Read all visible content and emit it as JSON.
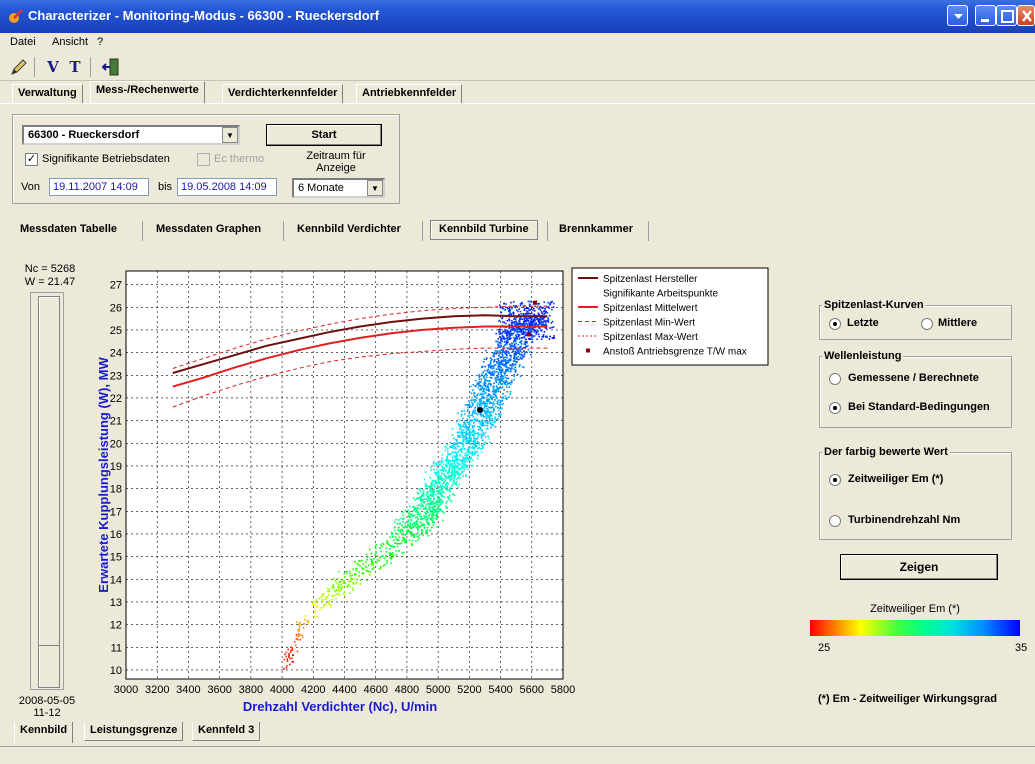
{
  "window": {
    "title": "Characterizer - Monitoring-Modus  -  66300  -  Rueckersdorf"
  },
  "menu": {
    "items": [
      "Datei",
      "Ansicht",
      "?"
    ]
  },
  "toolbar": {
    "buttons": [
      "pencil-icon",
      "V",
      "T",
      "exit-icon"
    ]
  },
  "main_tabs": [
    "Verwaltung",
    "Mess-/Rechenwerte",
    "Verdichterkennfelder",
    "Antriebkennfelder"
  ],
  "filter": {
    "station_value": "66300  -  Rueckersdorf",
    "start_label": "Start",
    "signifikante_label": "Signifikante Betriebsdaten",
    "signifikante_checked": true,
    "ec_thermo_label": "Ec thermo",
    "zeitraum_label": "Zeitraum für Anzeige",
    "von_label": "Von",
    "von_value": "19.11.2007 14:09",
    "bis_label": "bis",
    "bis_value": "19.05.2008 14:09",
    "period_value": "6 Monate"
  },
  "sub_tabs": [
    "Messdaten Tabelle",
    "Messdaten Graphen",
    "Kennbild Verdichter",
    "Kennbild Turbine",
    "Brennkammer"
  ],
  "slider": {
    "nc_label": "Nc = 5268",
    "w_label": "W = 21.47",
    "date_label": "2008-05-05",
    "time_label": "11-12"
  },
  "chart_data": {
    "type": "scatter",
    "xlabel": "Drehzahl Verdichter (Nc), U/min",
    "ylabel": "Erwartete Kupplungsleistung (W), MW",
    "xlim": [
      3000,
      5800
    ],
    "ylim": [
      9.6,
      27.6
    ],
    "xticks": [
      3000,
      3200,
      3400,
      3600,
      3800,
      4000,
      4200,
      4400,
      4600,
      4800,
      5000,
      5200,
      5400,
      5600,
      5800
    ],
    "yticks": [
      10,
      11,
      12,
      13,
      14,
      15,
      16,
      17,
      18,
      19,
      20,
      21,
      22,
      23,
      24,
      25,
      26,
      27
    ],
    "grid": true,
    "legend_position": "top-right",
    "legend": [
      "Spitzenlast Hersteller",
      "Signifikante Arbeitspunkte",
      "Spitzenlast Mittelwert",
      "Spitzenlast Min-Wert",
      "Spitzenlast Max-Wert",
      "Anstoß Antriebsgrenze T/W max"
    ],
    "series": [
      {
        "name": "Spitzenlast Hersteller",
        "color": "#6b0f0f",
        "style": "solid",
        "x": [
          3300,
          3500,
          3700,
          3900,
          4100,
          4300,
          4500,
          4700,
          4900,
          5100,
          5300,
          5500,
          5700
        ],
        "y": [
          23.1,
          23.5,
          23.9,
          24.3,
          24.6,
          24.9,
          25.15,
          25.35,
          25.5,
          25.6,
          25.65,
          25.6,
          25.6
        ]
      },
      {
        "name": "Spitzenlast Mittelwert",
        "color": "#e02020",
        "style": "solid",
        "x": [
          3300,
          3500,
          3700,
          3900,
          4100,
          4300,
          4500,
          4700,
          4900,
          5100,
          5300,
          5500,
          5700
        ],
        "y": [
          22.5,
          22.9,
          23.35,
          23.75,
          24.1,
          24.4,
          24.65,
          24.85,
          25.0,
          25.1,
          25.15,
          25.15,
          25.15
        ]
      },
      {
        "name": "Spitzenlast Min-Wert",
        "color": "#e02020",
        "style": "dashed",
        "x": [
          3300,
          3500,
          3700,
          3900,
          4100,
          4300,
          4500,
          4700,
          4900,
          5100,
          5300,
          5500,
          5700
        ],
        "y": [
          21.6,
          22.1,
          22.55,
          22.95,
          23.3,
          23.6,
          23.8,
          23.95,
          24.05,
          24.15,
          24.2,
          24.2,
          24.2
        ]
      },
      {
        "name": "Spitzenlast Max-Wert",
        "color": "#e02020",
        "style": "dashed",
        "x": [
          3300,
          3500,
          3700,
          3900,
          4100,
          4300,
          4500,
          4700,
          4900,
          5100,
          5300,
          5500,
          5700
        ],
        "y": [
          23.3,
          23.75,
          24.2,
          24.6,
          24.95,
          25.25,
          25.5,
          25.7,
          25.85,
          25.95,
          26.0,
          26.05,
          26.05
        ]
      }
    ],
    "scatter_cloud": {
      "name": "Signifikante Arbeitspunkte",
      "color_variable": "Zeitweiliger Em (*)",
      "color_range": [
        25,
        35
      ],
      "centerline": [
        {
          "x": 4020,
          "y": 10.1,
          "em": 25.0
        },
        {
          "x": 4060,
          "y": 11.0,
          "em": 25.5
        },
        {
          "x": 4120,
          "y": 12.0,
          "em": 26.5
        },
        {
          "x": 4250,
          "y": 13.0,
          "em": 28.0
        },
        {
          "x": 4420,
          "y": 14.0,
          "em": 29.0
        },
        {
          "x": 4620,
          "y": 15.0,
          "em": 30.0
        },
        {
          "x": 4800,
          "y": 16.0,
          "em": 30.6
        },
        {
          "x": 4920,
          "y": 17.0,
          "em": 31.2
        },
        {
          "x": 5000,
          "y": 18.0,
          "em": 31.8
        },
        {
          "x": 5080,
          "y": 19.0,
          "em": 32.3
        },
        {
          "x": 5180,
          "y": 20.0,
          "em": 32.8
        },
        {
          "x": 5250,
          "y": 21.0,
          "em": 33.1
        },
        {
          "x": 5310,
          "y": 22.0,
          "em": 33.4
        },
        {
          "x": 5380,
          "y": 23.0,
          "em": 33.7
        },
        {
          "x": 5450,
          "y": 24.0,
          "em": 34.0
        },
        {
          "x": 5520,
          "y": 25.0,
          "em": 34.3
        },
        {
          "x": 5600,
          "y": 25.7,
          "em": 34.6
        }
      ]
    },
    "current_point": {
      "x": 5268,
      "y": 21.47
    },
    "marker_points": [
      {
        "x": 5620,
        "y": 26.2
      },
      {
        "x": 5580,
        "y": 24.8
      }
    ]
  },
  "spitzenlast_group": {
    "title": "Spitzenlast-Kurven",
    "options": [
      "Letzte",
      "Mittlere"
    ],
    "selected": "Letzte"
  },
  "wellen_group": {
    "title": "Wellenleistung",
    "options": [
      "Gemessene / Berechnete",
      "Bei Standard-Bedingungen"
    ],
    "selected": "Bei Standard-Bedingungen"
  },
  "farbig_group": {
    "title": "Der farbig bewerte Wert",
    "options": [
      "Zeitweiliger Em (*)",
      "Turbinendrehzahl  Nm"
    ],
    "selected": "Zeitweiliger Em (*)"
  },
  "zeigen_label": "Zeigen",
  "colorbar": {
    "title": "Zeitweiliger Em (*)",
    "min_label": "25",
    "max_label": "35"
  },
  "footnote": "(*) Em - Zeitweiliger Wirkungsgrad",
  "bottom_tabs": [
    "Kennbild",
    "Leistungsgrenze",
    "Kennfeld 3"
  ]
}
